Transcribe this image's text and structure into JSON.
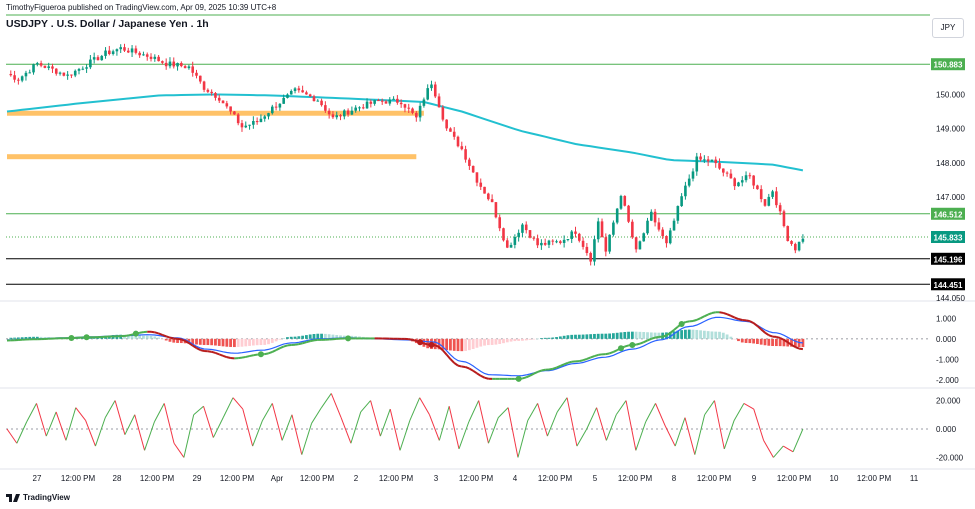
{
  "header": {
    "publisher": "TimothyFigueroa published on TradingView.com, Apr 09, 2025 10:39 UTC+8",
    "title": "USDJPY . U.S. Dollar / Japanese Yen . 1h",
    "currency": "JPY"
  },
  "footer": {
    "brand": "TradingView"
  },
  "colors": {
    "bull": "#089981",
    "bear": "#f23645",
    "ma": "#22c0d0",
    "zone": "#ffb74d",
    "hline_green": "#4caf50",
    "hline_black": "#000000",
    "macd": "#2962ff",
    "signal_up": "#4caf50",
    "signal_down": "#b71c1c",
    "hist_pos": "#26a69a",
    "hist_neg": "#ef5350",
    "osc_up": "#4caf50",
    "osc_down": "#f23645"
  },
  "chart_data": [
    {
      "type": "candlestick",
      "title": "USDJPY . U.S. Dollar / Japanese Yen . 1h",
      "ylim": [
        144.05,
        152.0
      ],
      "y_ticks": [
        "150.000",
        "149.000",
        "148.000",
        "147.000",
        "144.050"
      ],
      "x_ticks": [
        "27",
        "12:00 PM",
        "28",
        "12:00 PM",
        "29",
        "12:00 PM",
        "Apr",
        "12:00 PM",
        "2",
        "12:00 PM",
        "3",
        "12:00 PM",
        "4",
        "12:00 PM",
        "5",
        "12:00 PM",
        "8",
        "12:00 PM",
        "9",
        "12:00 PM",
        "10",
        "12:00 PM",
        "11"
      ],
      "anchors": [
        [
          0,
          150.6
        ],
        [
          3,
          150.45
        ],
        [
          8,
          150.9
        ],
        [
          16,
          150.55
        ],
        [
          26,
          151.2
        ],
        [
          30,
          151.35
        ],
        [
          38,
          151.1
        ],
        [
          42,
          150.9
        ],
        [
          48,
          150.8
        ],
        [
          52,
          150.2
        ],
        [
          56,
          149.9
        ],
        [
          62,
          149.05
        ],
        [
          66,
          149.2
        ],
        [
          70,
          149.6
        ],
        [
          76,
          150.1
        ],
        [
          82,
          149.85
        ],
        [
          86,
          149.3
        ],
        [
          92,
          149.6
        ],
        [
          98,
          149.8
        ],
        [
          104,
          149.8
        ],
        [
          108,
          149.3
        ],
        [
          110,
          149.9
        ],
        [
          112,
          150.35
        ],
        [
          114,
          149.7
        ],
        [
          116,
          149.0
        ],
        [
          120,
          148.4
        ],
        [
          124,
          147.5
        ],
        [
          128,
          146.8
        ],
        [
          132,
          145.5
        ],
        [
          136,
          146.2
        ],
        [
          140,
          145.6
        ],
        [
          146,
          145.7
        ],
        [
          150,
          146.0
        ],
        [
          154,
          145.2
        ],
        [
          156,
          146.3
        ],
        [
          158,
          145.4
        ],
        [
          162,
          147.1
        ],
        [
          166,
          145.4
        ],
        [
          170,
          146.5
        ],
        [
          174,
          145.6
        ],
        [
          178,
          147.0
        ],
        [
          182,
          148.1
        ],
        [
          186,
          148.05
        ],
        [
          192,
          147.4
        ],
        [
          196,
          147.6
        ],
        [
          200,
          146.8
        ],
        [
          202,
          147.2
        ],
        [
          206,
          145.8
        ],
        [
          208,
          145.5
        ],
        [
          210,
          145.83
        ]
      ],
      "ma_path": [
        [
          0,
          149.5
        ],
        [
          20,
          149.75
        ],
        [
          40,
          149.97
        ],
        [
          55,
          150.0
        ],
        [
          70,
          149.97
        ],
        [
          90,
          149.88
        ],
        [
          110,
          149.78
        ],
        [
          120,
          149.5
        ],
        [
          135,
          148.95
        ],
        [
          150,
          148.55
        ],
        [
          165,
          148.3
        ],
        [
          175,
          148.08
        ],
        [
          190,
          148.02
        ],
        [
          202,
          147.95
        ],
        [
          210,
          147.78
        ]
      ],
      "levels": [
        {
          "price": 150.883,
          "label": "150.883",
          "style": "green"
        },
        {
          "price": 146.512,
          "label": "146.512",
          "style": "green"
        },
        {
          "price": 145.833,
          "label": "145.833",
          "style": "current"
        },
        {
          "price": 145.196,
          "label": "145.196",
          "style": "black"
        },
        {
          "price": 144.451,
          "label": "144.451",
          "style": "black"
        }
      ],
      "top_level": 152.32,
      "zones": [
        {
          "from_bar": 0,
          "to_bar": 110,
          "price": 149.45
        },
        {
          "from_bar": 0,
          "to_bar": 108,
          "price": 148.18
        }
      ]
    },
    {
      "type": "line",
      "title": "MACD",
      "ylim": [
        -2.2,
        1.6
      ],
      "y_ticks": [
        "1.000",
        "0.000",
        "-1.000",
        "-2.000"
      ],
      "series": [
        {
          "role": "macd",
          "values": [
            -0.05,
            0.0,
            0.05,
            0.1,
            0.15,
            0.2,
            0.05,
            -0.5,
            -0.7,
            -0.55,
            -0.2,
            0.0,
            0.05,
            0.0,
            -0.05,
            -0.15,
            -1.1,
            -1.75,
            -1.8,
            -1.55,
            -1.2,
            -0.9,
            -0.5,
            -0.05,
            0.6,
            1.05,
            0.85,
            0.3,
            -0.2
          ]
        },
        {
          "role": "signal",
          "values": [
            -0.08,
            -0.02,
            0.03,
            0.08,
            0.13,
            0.35,
            0.0,
            -0.6,
            -0.95,
            -0.75,
            -0.3,
            -0.05,
            0.02,
            0.02,
            0.0,
            -0.3,
            -1.35,
            -1.95,
            -1.95,
            -1.5,
            -1.1,
            -0.75,
            -0.3,
            0.1,
            0.85,
            1.3,
            0.9,
            0.1,
            -0.5
          ]
        },
        {
          "role": "histogram",
          "values": [
            0.05,
            0.1,
            0.05,
            0.1,
            0.2,
            0.15,
            -0.2,
            -0.3,
            -0.4,
            -0.3,
            0.1,
            0.25,
            0.15,
            0.05,
            -0.05,
            -0.5,
            -0.6,
            -0.3,
            -0.1,
            0.05,
            0.2,
            0.25,
            0.35,
            0.3,
            0.45,
            0.35,
            -0.2,
            -0.35,
            -0.4
          ]
        }
      ],
      "cross_bars": [
        17,
        21,
        34,
        67,
        90,
        109,
        112,
        135,
        162,
        165,
        178
      ]
    },
    {
      "type": "line",
      "title": "Oscillator",
      "ylim": [
        -26,
        26
      ],
      "y_ticks": [
        "20.000",
        "0.000",
        "-20.000"
      ],
      "series": [
        {
          "role": "oscillator",
          "values": [
            0,
            -10,
            5,
            18,
            -5,
            12,
            -8,
            15,
            6,
            -12,
            8,
            20,
            -4,
            10,
            -15,
            5,
            18,
            -10,
            -20,
            10,
            16,
            -6,
            8,
            22,
            14,
            -12,
            6,
            18,
            -8,
            10,
            -18,
            4,
            15,
            25,
            8,
            -10,
            12,
            20,
            -5,
            14,
            -15,
            6,
            22,
            10,
            -8,
            16,
            -14,
            5,
            20,
            -10,
            8,
            15,
            -20,
            6,
            18,
            -5,
            12,
            22,
            -12,
            0,
            15,
            -8,
            10,
            20,
            -15,
            5,
            18,
            2,
            -12,
            8,
            -18,
            10,
            20,
            -14,
            6,
            18,
            14,
            -8,
            -20,
            -12,
            -16,
            0
          ]
        }
      ]
    }
  ]
}
